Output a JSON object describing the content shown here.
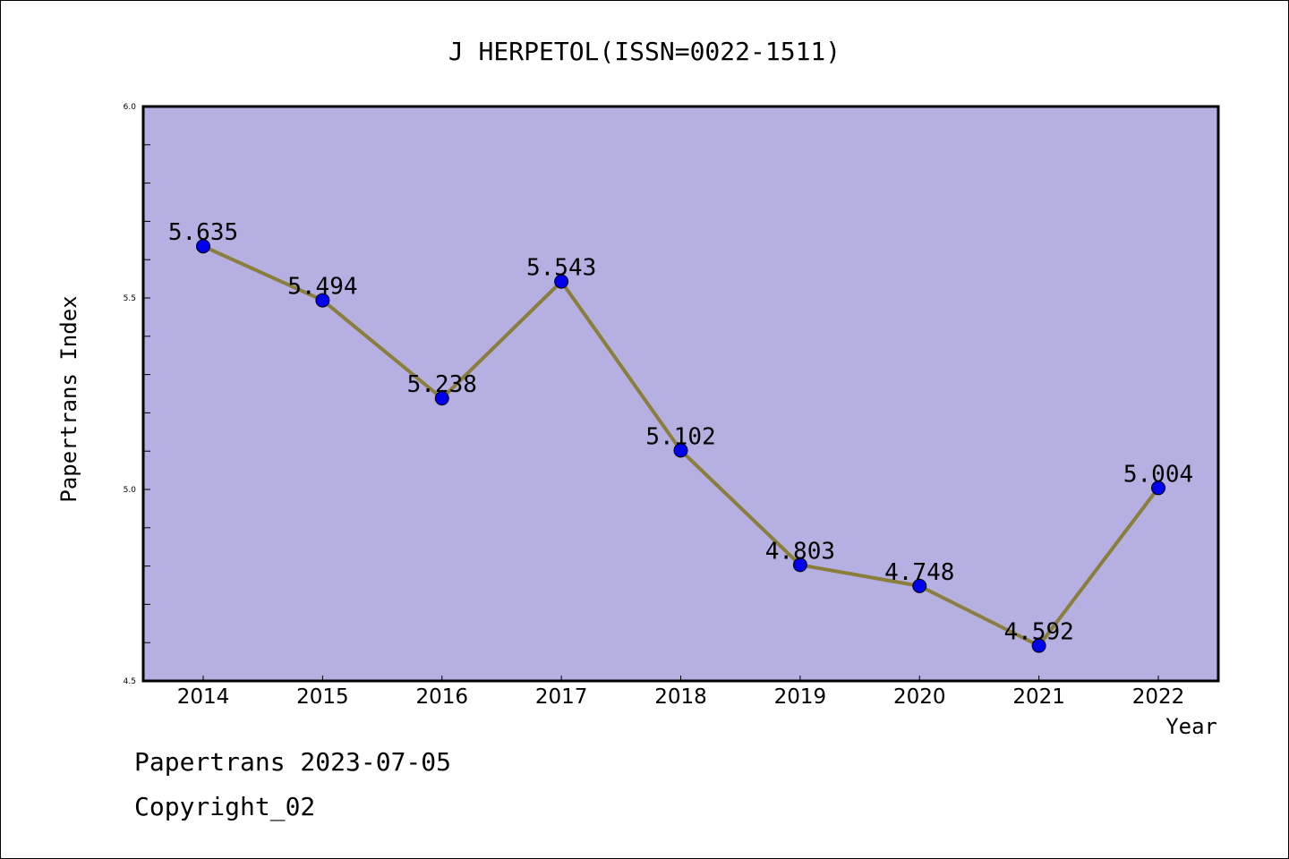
{
  "chart_data": {
    "type": "line",
    "title": "J HERPETOL(ISSN=0022-1511)",
    "xlabel": "Year",
    "ylabel": "Papertrans Index",
    "categories": [
      "2014",
      "2015",
      "2016",
      "2017",
      "2018",
      "2019",
      "2020",
      "2021",
      "2022"
    ],
    "values": [
      5.635,
      5.494,
      5.238,
      5.543,
      5.102,
      4.803,
      4.748,
      4.592,
      5.004
    ],
    "value_labels": [
      "5.635",
      "5.494",
      "5.238",
      "5.543",
      "5.102",
      "4.803",
      "4.748",
      "4.592",
      "5.004"
    ],
    "ylim": [
      4.5,
      6.0
    ],
    "yticks": [
      4.5,
      5.0,
      5.5,
      6.0
    ],
    "ytick_labels": [
      "4.5",
      "5.0",
      "5.5",
      "6.0"
    ],
    "grid": false,
    "colors": {
      "plot_background": "#b5afe2",
      "line": "#8b7d3a",
      "marker": "#0000ee"
    }
  },
  "footer": {
    "source": "Papertrans 2023-07-05",
    "copyright": "Copyright_02"
  }
}
